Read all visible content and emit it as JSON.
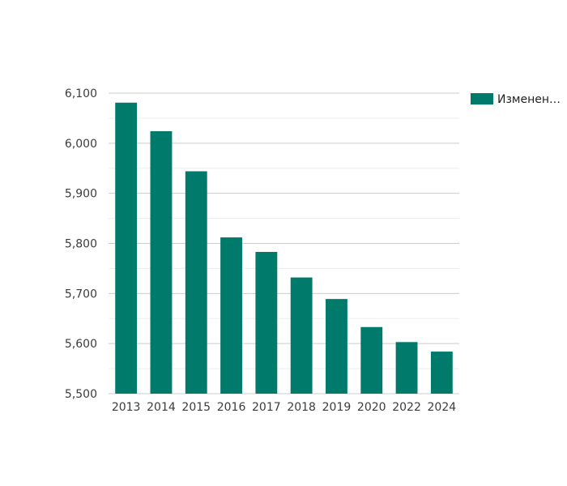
{
  "chart_data": {
    "type": "bar",
    "categories": [
      "2013",
      "2014",
      "2015",
      "2016",
      "2017",
      "2018",
      "2019",
      "2020",
      "2022",
      "2024"
    ],
    "series": [
      {
        "name": "Изменен…",
        "values": [
          6081,
          6024,
          5944,
          5812,
          5783,
          5732,
          5689,
          5633,
          5603,
          5584
        ]
      }
    ],
    "ylim": [
      5500,
      6100
    ],
    "yticks": [
      "5,500",
      "5,600",
      "5,700",
      "5,800",
      "5,900",
      "6,000",
      "6,100"
    ],
    "ytick_values": [
      5500,
      5600,
      5700,
      5800,
      5900,
      6000,
      6100
    ],
    "grid": true,
    "legend_position": "top-right",
    "colors": {
      "bar": "#007a6b",
      "grid_major": "#cccccc",
      "grid_minor": "#ededed",
      "axis_text": "#3c3c3c"
    }
  }
}
